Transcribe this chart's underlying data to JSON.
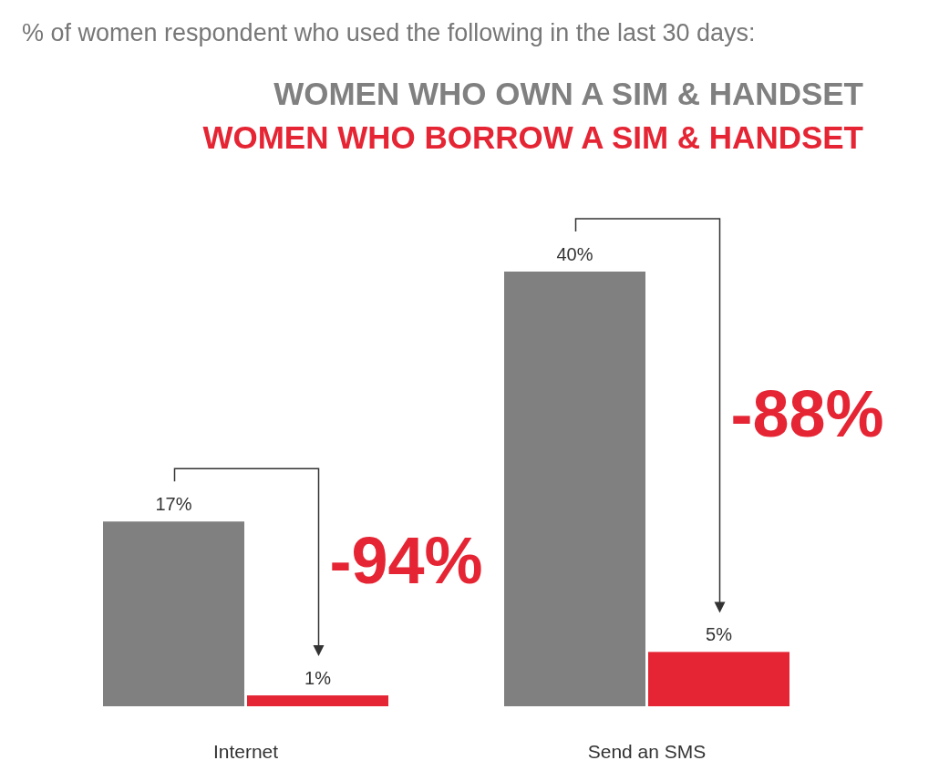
{
  "chart_data": {
    "type": "bar",
    "title": "% of women respondent who used the following in the last 30 days:",
    "categories": [
      "Internet",
      "Send an SMS"
    ],
    "series": [
      {
        "name": "WOMEN WHO OWN A SIM & HANDSET",
        "color": "#808080",
        "values": [
          17,
          40
        ],
        "value_labels": [
          "17%",
          "40%"
        ]
      },
      {
        "name": "WOMEN WHO BORROW A SIM & HANDSET",
        "color": "#e52534",
        "values": [
          1,
          5
        ],
        "value_labels": [
          "1%",
          "5%"
        ]
      }
    ],
    "annotations": [
      "-94%",
      "-88%"
    ],
    "legend": "top right"
  }
}
